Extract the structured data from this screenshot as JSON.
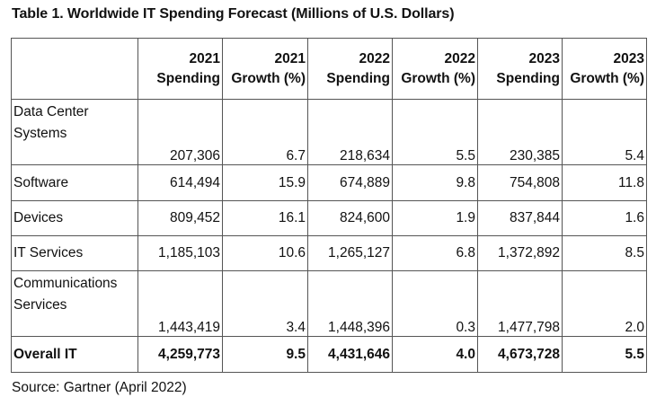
{
  "title": "Table 1. Worldwide IT Spending Forecast (Millions of U.S. Dollars)",
  "columns": [
    {
      "year": "2021",
      "label": "Spending"
    },
    {
      "year": "2021",
      "label": "Growth (%)"
    },
    {
      "year": "2022",
      "label": "Spending"
    },
    {
      "year": "2022",
      "label": "Growth (%)"
    },
    {
      "year": "2023",
      "label": "Spending"
    },
    {
      "year": "2023",
      "label": "Growth (%)"
    }
  ],
  "rows": [
    {
      "label": "Data Center Systems",
      "values": [
        "207,306",
        "6.7",
        "218,634",
        "5.5",
        "230,385",
        "5.4"
      ]
    },
    {
      "label": "Software",
      "values": [
        "614,494",
        "15.9",
        "674,889",
        "9.8",
        "754,808",
        "11.8"
      ]
    },
    {
      "label": "Devices",
      "values": [
        "809,452",
        "16.1",
        "824,600",
        "1.9",
        "837,844",
        "1.6"
      ]
    },
    {
      "label": "IT Services",
      "values": [
        "1,185,103",
        "10.6",
        "1,265,127",
        "6.8",
        "1,372,892",
        "8.5"
      ]
    },
    {
      "label": "Communications Services",
      "values": [
        "1,443,419",
        "3.4",
        "1,448,396",
        "0.3",
        "1,477,798",
        "2.0"
      ]
    },
    {
      "label": "Overall IT",
      "values": [
        "4,259,773",
        "9.5",
        "4,431,646",
        "4.0",
        "4,673,728",
        "5.5"
      ]
    }
  ],
  "source": "Source: Gartner (April 2022)"
}
